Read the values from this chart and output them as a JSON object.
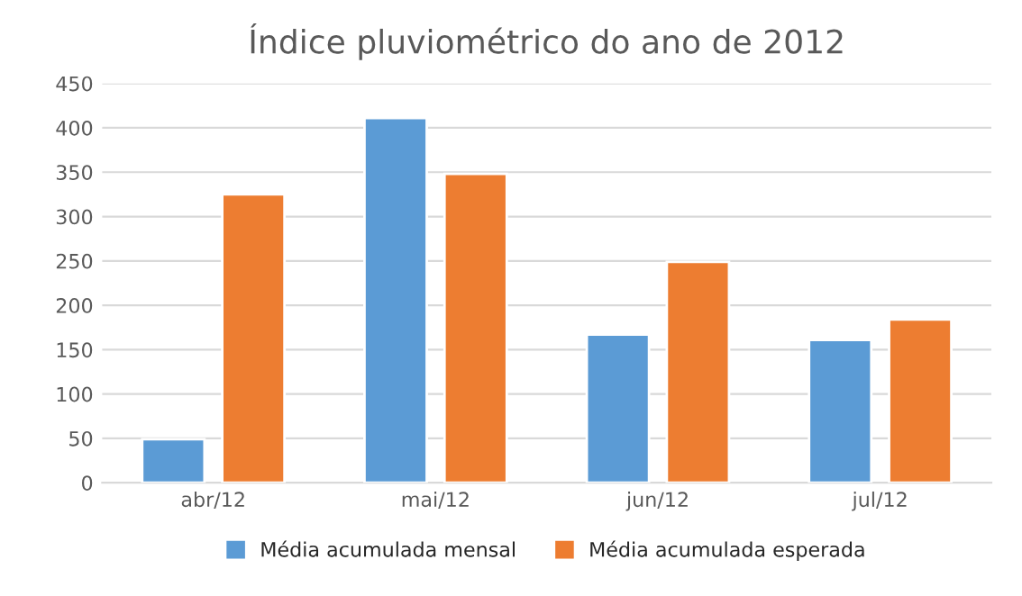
{
  "chart_data": {
    "type": "bar",
    "title": "Índice pluviométrico do ano de 2012",
    "categories": [
      "abr/12",
      "mai/12",
      "jun/12",
      "jul/12"
    ],
    "series": [
      {
        "name": "Média acumulada mensal",
        "color": "#5b9bd5",
        "values": [
          49,
          411,
          167,
          161
        ]
      },
      {
        "name": "Média acumulada esperada",
        "color": "#ed7d31",
        "values": [
          325,
          348,
          249,
          184
        ]
      }
    ],
    "ylim": [
      0,
      450
    ],
    "yticks": [
      0,
      50,
      100,
      150,
      200,
      250,
      300,
      350,
      400,
      450
    ],
    "grid": "y",
    "legend": "bottom"
  }
}
